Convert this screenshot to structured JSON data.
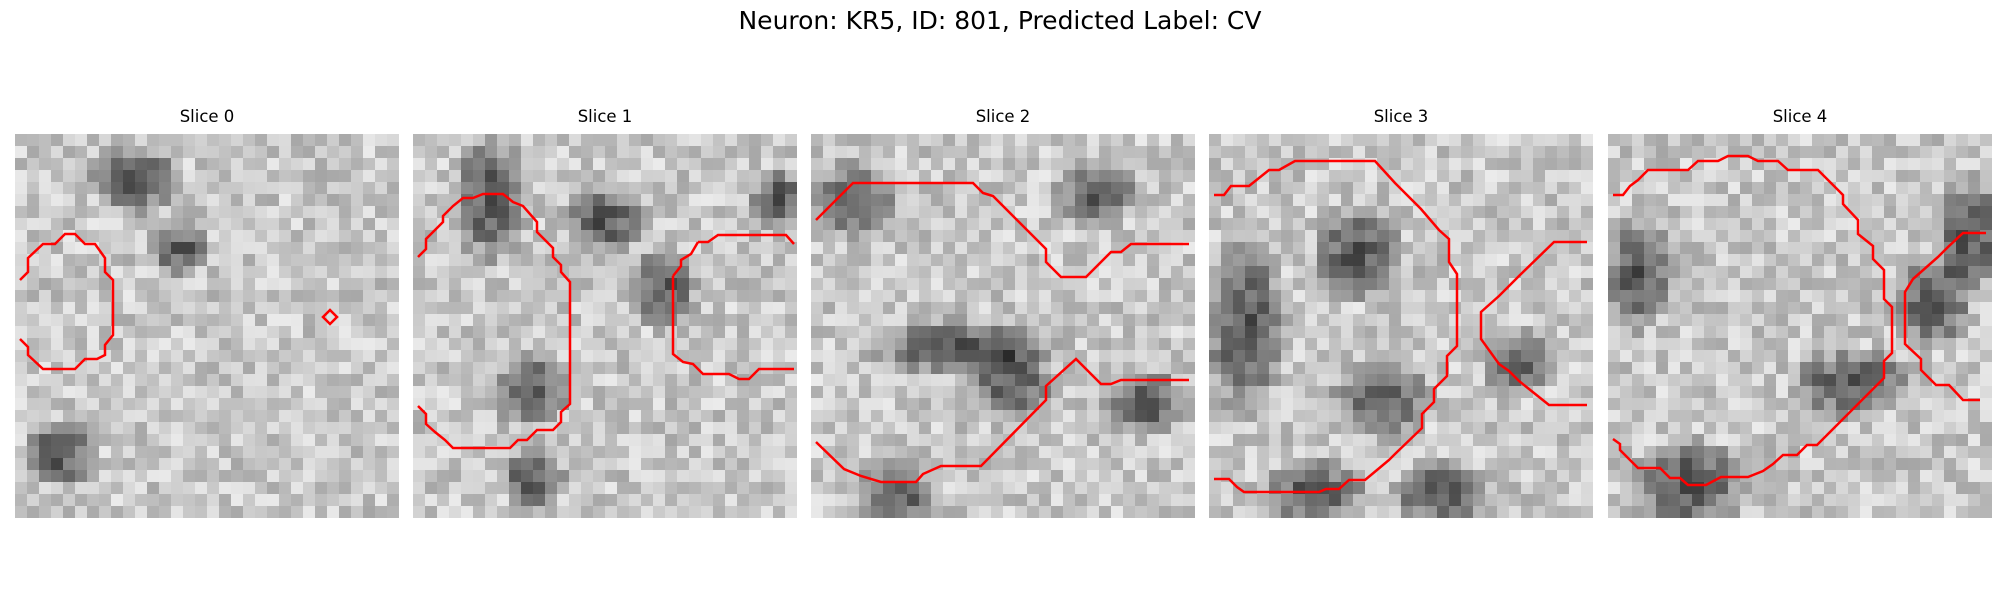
{
  "figure": {
    "title": "Neuron: KR5, ID: 801, Predicted Label: CV"
  },
  "colors": {
    "contour": "#ff0000",
    "background": "#ffffff"
  },
  "panels": [
    {
      "title": "Slice 0"
    },
    {
      "title": "Slice 1"
    },
    {
      "title": "Slice 2"
    },
    {
      "title": "Slice 3"
    },
    {
      "title": "Slice 4"
    }
  ]
}
